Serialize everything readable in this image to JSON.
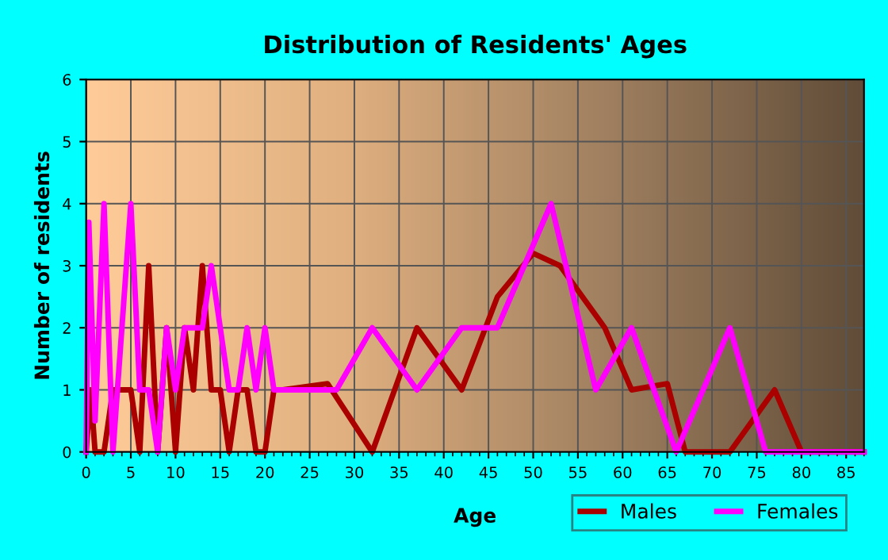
{
  "chart_data": {
    "type": "line",
    "title": "Distribution of Residents' Ages",
    "xlabel": "Age",
    "ylabel": "Number of residents",
    "xlim": [
      0,
      87
    ],
    "xticks": [
      0,
      5,
      10,
      15,
      20,
      25,
      30,
      35,
      40,
      45,
      50,
      55,
      60,
      65,
      70,
      75,
      80,
      85
    ],
    "ylim": [
      0,
      6
    ],
    "yticks": [
      0,
      1,
      2,
      3,
      4,
      5,
      6
    ],
    "grid": true,
    "legend": "bottom right",
    "marker": "none",
    "line_style": "solid",
    "series": [
      {
        "name": "Males",
        "color": "#aa0000",
        "x": [
          0,
          0.5,
          1,
          2,
          3,
          4,
          5,
          6,
          7,
          8,
          9,
          10,
          11,
          12,
          13,
          14,
          15,
          16,
          17,
          18,
          19,
          20,
          21,
          22,
          27,
          32,
          37,
          42,
          46,
          50,
          53,
          55,
          58,
          61,
          65,
          67,
          72,
          77,
          80,
          87
        ],
        "values": [
          0,
          1,
          0,
          0,
          1,
          1,
          1,
          0,
          3,
          0,
          2,
          0,
          2,
          1,
          3,
          1,
          1,
          0,
          1,
          1,
          0,
          0,
          1,
          1,
          1.1,
          0,
          2,
          1,
          2.5,
          3.2,
          3,
          2.6,
          2,
          1,
          1.1,
          0,
          0,
          1,
          0,
          0
        ]
      },
      {
        "name": "Females",
        "color": "#ff00ff",
        "x": [
          0,
          0.3,
          1,
          2,
          3,
          4,
          5,
          6,
          7,
          8,
          9,
          10,
          11,
          12,
          13,
          14,
          15,
          16,
          17,
          18,
          19,
          20,
          21,
          22,
          25,
          28,
          32,
          37,
          42,
          46,
          52,
          57,
          61,
          66,
          72,
          76,
          87
        ],
        "values": [
          0,
          3.7,
          0.5,
          4,
          0,
          2,
          4,
          1,
          1,
          0,
          2,
          1,
          2,
          2,
          2,
          3,
          2,
          1,
          1,
          2,
          1,
          2,
          1,
          1,
          1,
          1,
          2,
          1,
          2,
          2,
          4,
          1,
          2,
          0,
          2,
          0,
          0
        ]
      }
    ]
  }
}
